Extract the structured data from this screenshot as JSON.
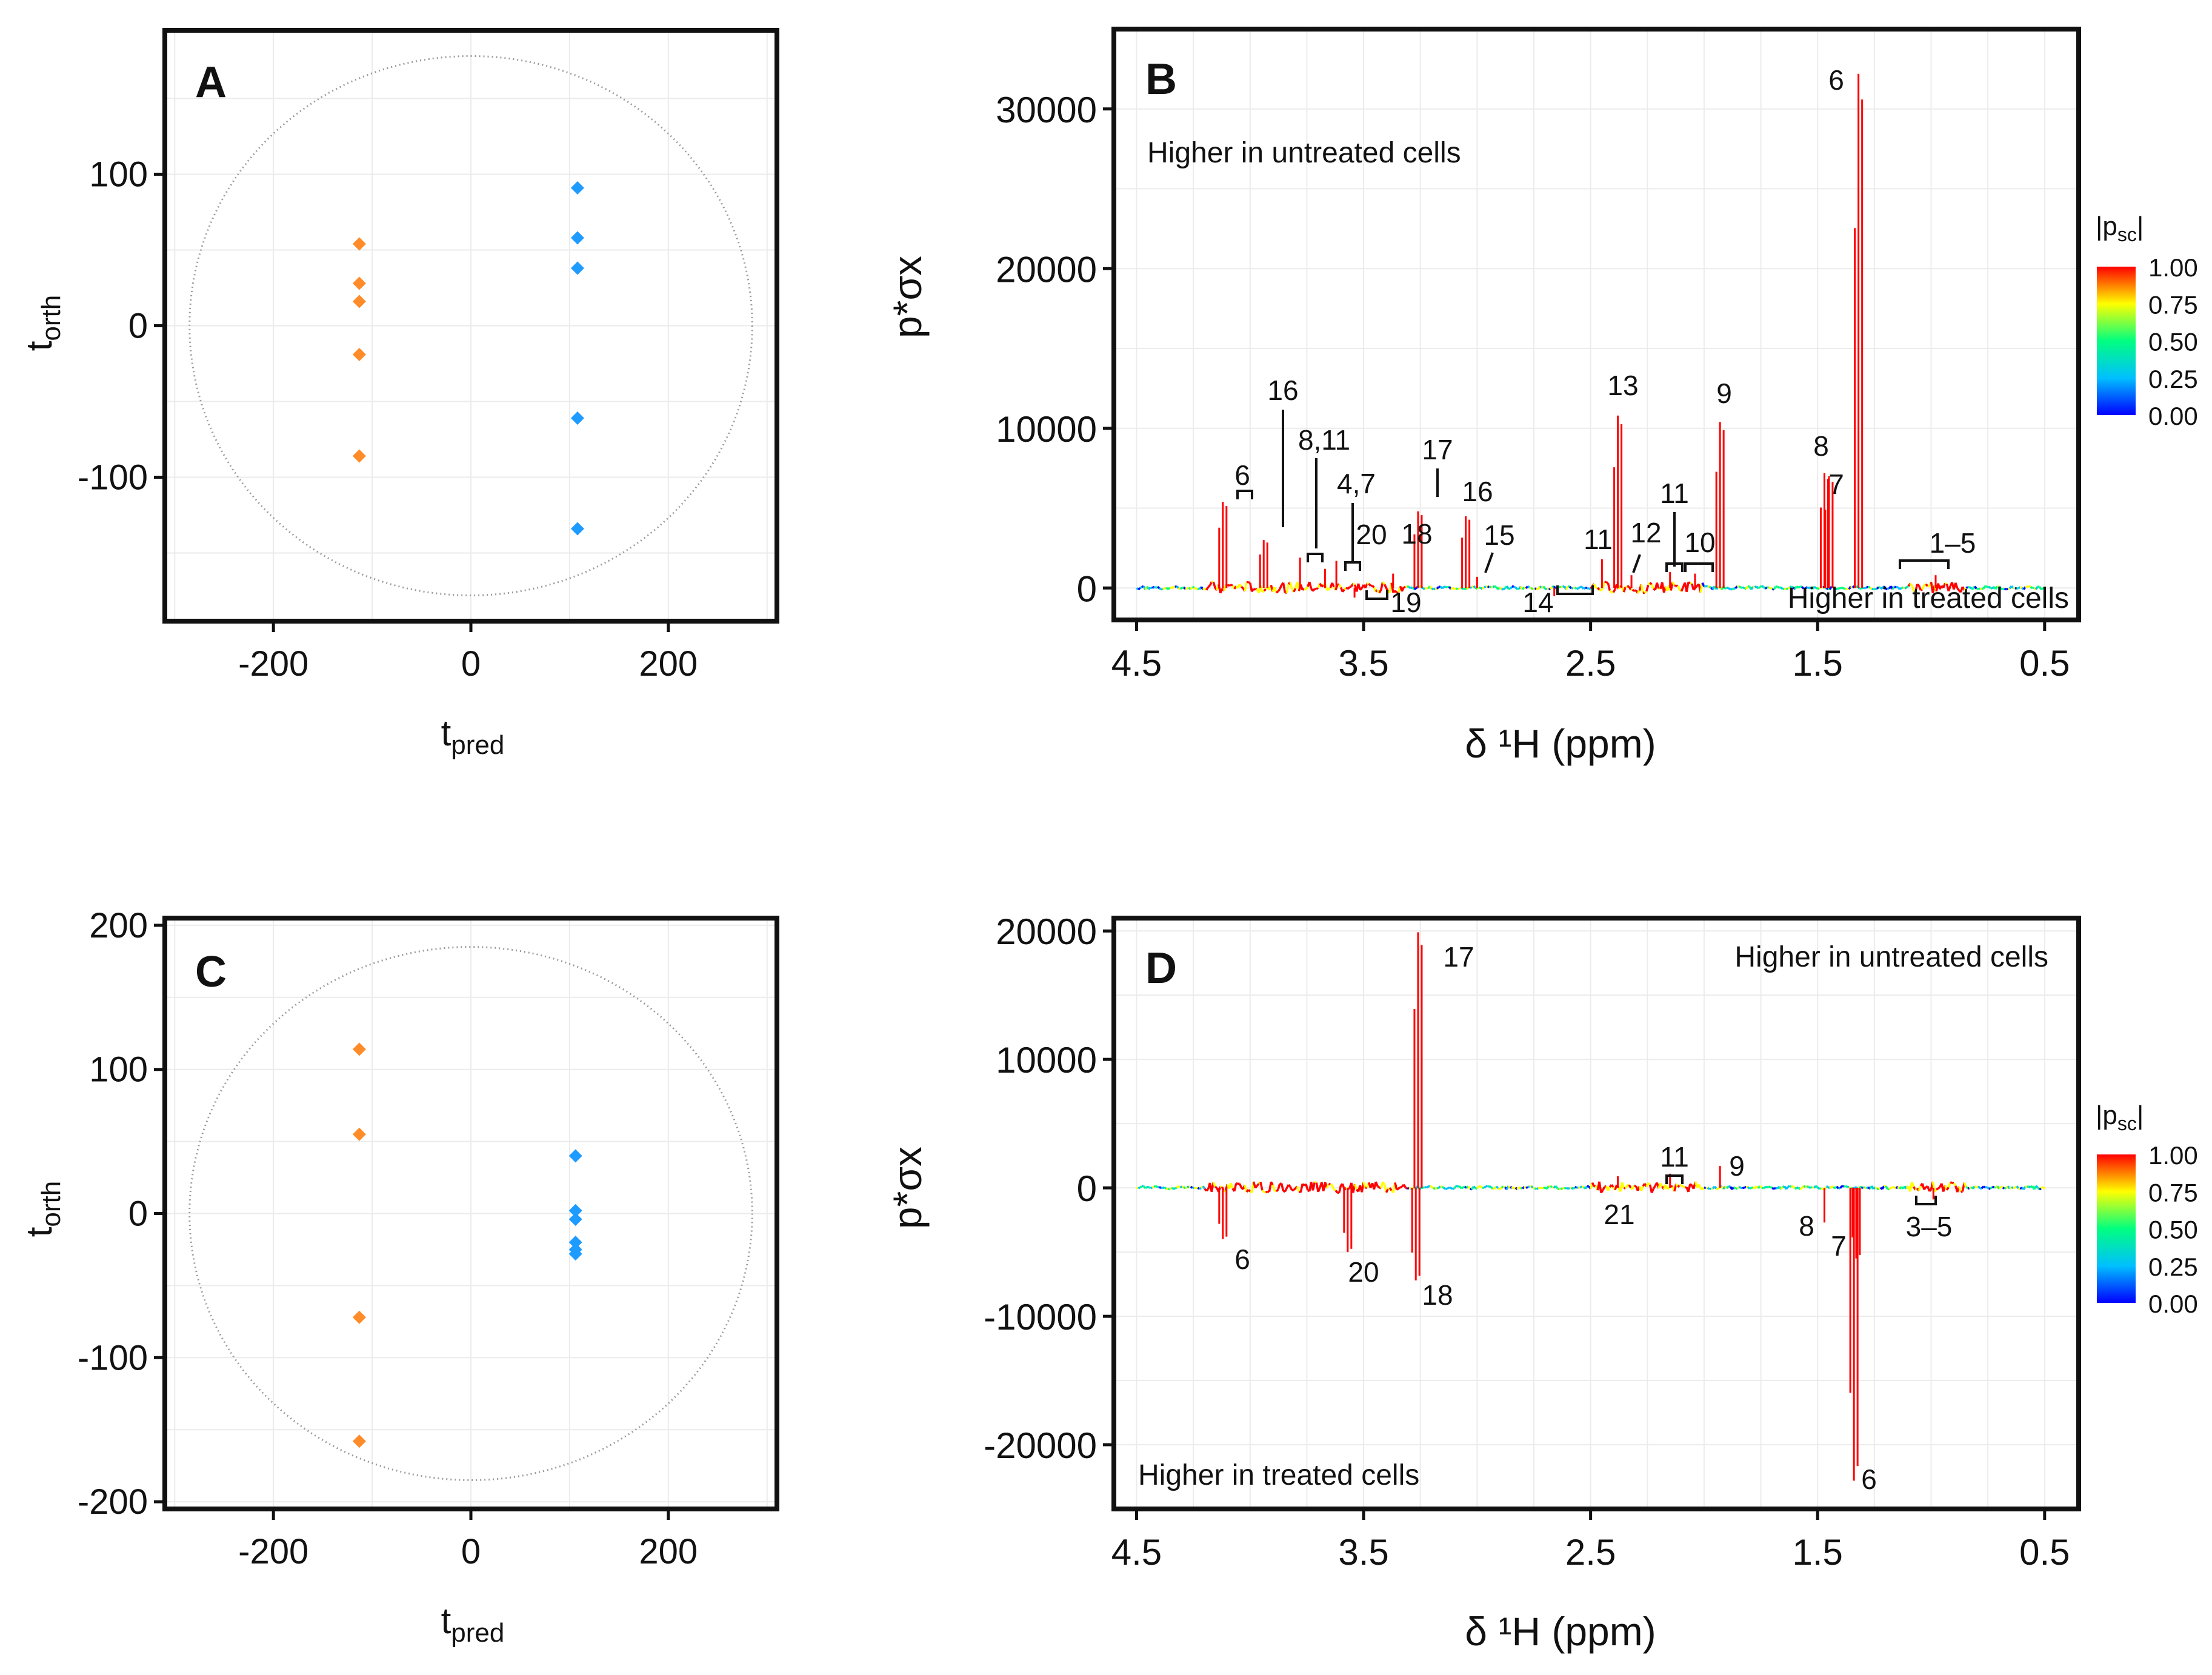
{
  "chart_data": [
    {
      "id": "A",
      "type": "scatter",
      "panel_label": "A",
      "xlabel": "t",
      "xlabel_sub": "pred",
      "ylabel": "t",
      "ylabel_sub": "orth",
      "xlim": [
        -310,
        310
      ],
      "ylim": [
        -195,
        195
      ],
      "xticks": [
        -200,
        0,
        200
      ],
      "yticks": [
        -100,
        0,
        100
      ],
      "ellipse": {
        "rx": 285,
        "ry": 178
      },
      "series": [
        {
          "name": "treated",
          "color": "#ff8c28",
          "points": [
            [
              -113,
              54
            ],
            [
              -113,
              28
            ],
            [
              -113,
              16
            ],
            [
              -113,
              -19
            ],
            [
              -113,
              -86
            ]
          ]
        },
        {
          "name": "untreated",
          "color": "#1e9bff",
          "points": [
            [
              108,
              91
            ],
            [
              108,
              58
            ],
            [
              108,
              38
            ],
            [
              108,
              -61
            ],
            [
              108,
              -134
            ]
          ]
        }
      ]
    },
    {
      "id": "B",
      "type": "line",
      "panel_label": "B",
      "xlabel": "δ ¹H (ppm)",
      "ylabel": "p*σx",
      "xlim": [
        4.6,
        0.35
      ],
      "ylim": [
        -2000,
        35000
      ],
      "xticks": [
        "4.5",
        "3.5",
        "2.5",
        "1.5",
        "0.5"
      ],
      "yticks": [
        0,
        10000,
        20000,
        30000
      ],
      "annotation_top": "Higher in untreated cells",
      "annotation_bottom": "Higher in treated cells",
      "peaks": [
        {
          "x": 4.12,
          "y": 5400,
          "label": "6"
        },
        {
          "x": 3.94,
          "y": 3000,
          "label": "16"
        },
        {
          "x": 3.78,
          "y": 1900,
          "label": "8,11"
        },
        {
          "x": 3.67,
          "y": 1200,
          "label": "4,7"
        },
        {
          "x": 3.62,
          "y": 1700,
          "label": "20"
        },
        {
          "x": 3.54,
          "y": -600,
          "label": "19"
        },
        {
          "x": 3.37,
          "y": 900,
          "label": "18"
        },
        {
          "x": 3.26,
          "y": 4800,
          "label": "17"
        },
        {
          "x": 3.05,
          "y": 4500,
          "label": "16"
        },
        {
          "x": 3.0,
          "y": 700,
          "label": "15"
        },
        {
          "x": 2.66,
          "y": -500,
          "label": "14"
        },
        {
          "x": 2.38,
          "y": 10800,
          "label": "13"
        },
        {
          "x": 2.45,
          "y": 1800,
          "label": "11"
        },
        {
          "x": 2.32,
          "y": 800,
          "label": "12"
        },
        {
          "x": 2.15,
          "y": 1000,
          "label": "11"
        },
        {
          "x": 2.04,
          "y": 900,
          "label": "10"
        },
        {
          "x": 1.93,
          "y": 10400,
          "label": "9"
        },
        {
          "x": 1.47,
          "y": 7200,
          "label": "8"
        },
        {
          "x": 1.45,
          "y": 7000,
          "label": "7"
        },
        {
          "x": 1.32,
          "y": 32200,
          "label": "6"
        },
        {
          "x": 0.98,
          "y": 800,
          "label": "1–5"
        }
      ]
    },
    {
      "id": "C",
      "type": "scatter",
      "panel_label": "C",
      "xlabel": "t",
      "xlabel_sub": "pred",
      "ylabel": "t",
      "ylabel_sub": "orth",
      "xlim": [
        -310,
        310
      ],
      "ylim": [
        -205,
        205
      ],
      "xticks": [
        -200,
        0,
        200
      ],
      "yticks": [
        -200,
        -100,
        0,
        100,
        200
      ],
      "ellipse": {
        "rx": 285,
        "ry": 185
      },
      "series": [
        {
          "name": "treated",
          "color": "#ff8c28",
          "points": [
            [
              -113,
              114
            ],
            [
              -113,
              55
            ],
            [
              -113,
              -72
            ],
            [
              -113,
              -158
            ]
          ]
        },
        {
          "name": "untreated",
          "color": "#1e9bff",
          "points": [
            [
              106,
              40
            ],
            [
              106,
              2
            ],
            [
              106,
              -4
            ],
            [
              106,
              -20
            ],
            [
              106,
              -25
            ],
            [
              106,
              -28
            ]
          ]
        }
      ]
    },
    {
      "id": "D",
      "type": "line",
      "panel_label": "D",
      "xlabel": "δ ¹H (ppm)",
      "ylabel": "p*σx",
      "xlim": [
        4.6,
        0.35
      ],
      "ylim": [
        -25000,
        21000
      ],
      "xticks": [
        "4.5",
        "3.5",
        "2.5",
        "1.5",
        "0.5"
      ],
      "yticks": [
        -20000,
        -10000,
        0,
        10000,
        20000
      ],
      "annotation_top": "Higher in untreated cells",
      "annotation_bottom": "Higher in treated cells",
      "peaks": [
        {
          "x": 4.12,
          "y": -4000,
          "label": "6"
        },
        {
          "x": 3.57,
          "y": -5000,
          "label": "20"
        },
        {
          "x": 3.26,
          "y": 19900,
          "label": "17"
        },
        {
          "x": 3.27,
          "y": -7200,
          "label": "18"
        },
        {
          "x": 2.38,
          "y": 900,
          "label": "21"
        },
        {
          "x": 2.15,
          "y": 1100,
          "label": "11"
        },
        {
          "x": 1.93,
          "y": 1700,
          "label": "9"
        },
        {
          "x": 1.47,
          "y": -2700,
          "label": "8"
        },
        {
          "x": 1.34,
          "y": -22800,
          "label": "6"
        },
        {
          "x": 1.33,
          "y": -5500,
          "label": "7"
        },
        {
          "x": 0.99,
          "y": -900,
          "label": "3–5"
        }
      ]
    }
  ],
  "colorbar": {
    "title": "|p",
    "title_sub": "sc",
    "title_end": "|",
    "ticks": [
      "1.00",
      "0.75",
      "0.50",
      "0.25",
      "0.00"
    ],
    "colors": [
      "#ff0000",
      "#ffff00",
      "#00ff80",
      "#00c0ff",
      "#0000ff"
    ]
  }
}
